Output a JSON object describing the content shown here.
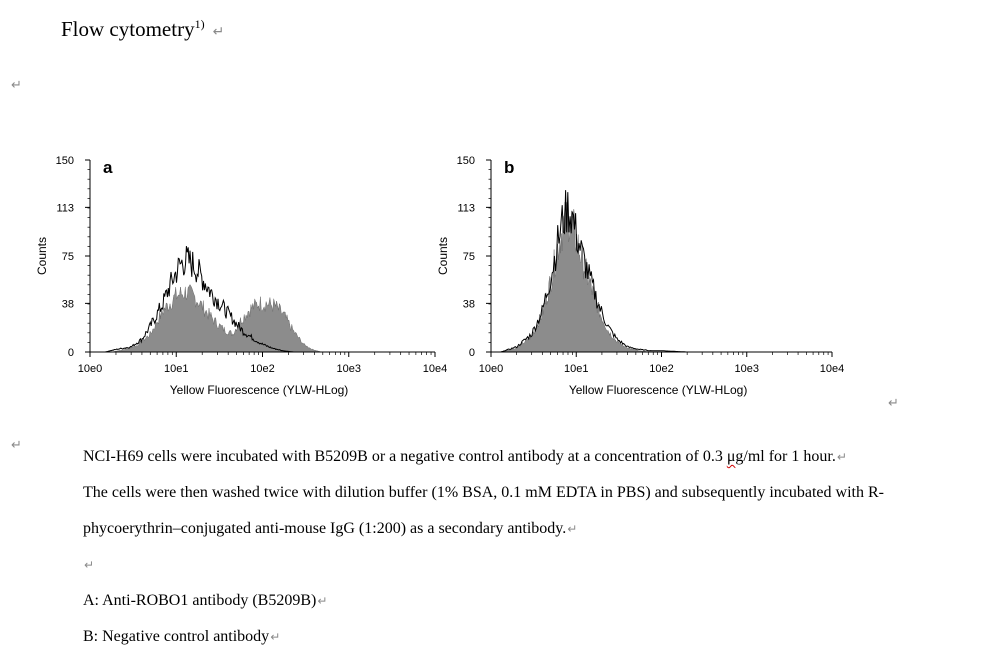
{
  "heading": {
    "text": "Flow cytometry",
    "superscript": "1)"
  },
  "return_mark": "↵",
  "chart_data": [
    {
      "type": "area",
      "panel_label": "a",
      "xlabel": "Yellow Fluorescence (YLW-HLog)",
      "ylabel": "Counts",
      "x_scale": "log",
      "xlim": [
        1,
        10000
      ],
      "ylim": [
        0,
        150
      ],
      "x_ticks": [
        "10e0",
        "10e1",
        "10e2",
        "10e3",
        "10e4"
      ],
      "y_ticks": [
        "150",
        "113",
        "75",
        "38",
        "0"
      ],
      "series": [
        {
          "style": "filled-gray",
          "x": [
            1.8,
            2.5,
            3.5,
            5,
            7,
            10,
            13,
            17,
            22,
            28,
            35,
            45,
            55,
            70,
            90,
            110,
            140,
            180,
            230,
            300,
            380,
            480
          ],
          "y": [
            0,
            2,
            5,
            14,
            32,
            44,
            47,
            42,
            32,
            24,
            18,
            14,
            24,
            33,
            38,
            38,
            36,
            28,
            16,
            6,
            2,
            0
          ]
        },
        {
          "style": "outline",
          "x": [
            1.5,
            2,
            3,
            4,
            5,
            7,
            9,
            11,
            13,
            16,
            20,
            25,
            32,
            40,
            50,
            60,
            80,
            100,
            130,
            170,
            230,
            300
          ],
          "y": [
            0,
            2,
            4,
            10,
            20,
            38,
            56,
            68,
            72,
            68,
            58,
            47,
            38,
            30,
            22,
            16,
            10,
            6,
            3,
            1,
            0,
            0
          ]
        }
      ]
    },
    {
      "type": "area",
      "panel_label": "b",
      "xlabel": "Yellow Fluorescence (YLW-HLog)",
      "ylabel": "Counts",
      "x_scale": "log",
      "xlim": [
        1,
        10000
      ],
      "ylim": [
        0,
        150
      ],
      "x_ticks": [
        "10e0",
        "10e1",
        "10e2",
        "10e3",
        "10e4"
      ],
      "y_ticks": [
        "150",
        "113",
        "75",
        "38",
        "0"
      ],
      "series": [
        {
          "style": "filled-gray",
          "x": [
            1.3,
            2,
            3,
            4,
            5,
            6,
            7,
            8,
            9,
            10,
            12,
            15,
            19,
            24,
            30,
            40,
            55,
            75,
            100
          ],
          "y": [
            0,
            3,
            12,
            30,
            55,
            80,
            98,
            105,
            100,
            88,
            70,
            50,
            30,
            16,
            8,
            3,
            1,
            0,
            0
          ]
        },
        {
          "style": "outline",
          "x": [
            1.3,
            2,
            3,
            4,
            5,
            6,
            7,
            8,
            9,
            10,
            12,
            15,
            19,
            24,
            30,
            40,
            55,
            75,
            100,
            200,
            1000
          ],
          "y": [
            0,
            4,
            14,
            32,
            58,
            84,
            104,
            112,
            106,
            92,
            74,
            54,
            34,
            19,
            10,
            4,
            2,
            1,
            1,
            0,
            0
          ]
        }
      ]
    }
  ],
  "paragraphs": {
    "line1_before": "NCI-H69 cells were incubated with B5209B or a negative control antibody at a concentration of 0.3 ",
    "line1_unit_mu": "μ",
    "line1_unit_g": "g",
    "line1_after": "/ml for 1 hour.",
    "line2": "The cells were then washed twice with dilution buffer (1% BSA, 0.1 mM EDTA in PBS) and subsequently incubated with R-",
    "line3": "phycoerythrin–conjugated anti-mouse IgG (1:200) as a secondary antibody.",
    "legend_a": "A: Anti-ROBO1 antibody (B5209B)",
    "legend_b": "B: Negative control antibody"
  }
}
